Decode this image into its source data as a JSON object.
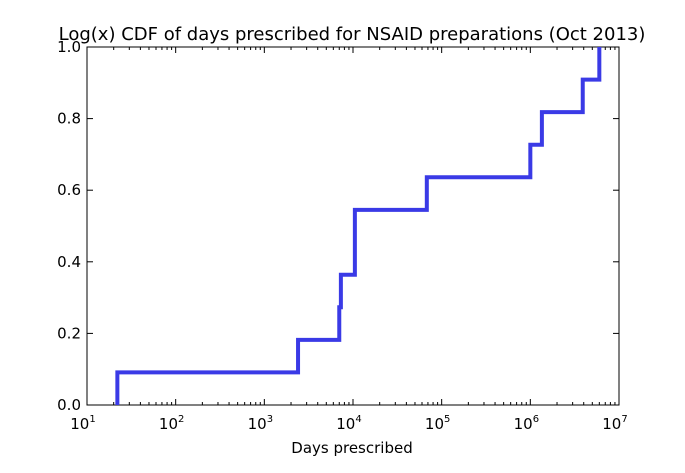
{
  "chart_data": {
    "type": "line",
    "title": "Log(x) CDF of days prescribed for NSAID preparations (Oct 2013)",
    "xlabel": "Days prescribed",
    "ylabel": "",
    "xscale": "log",
    "xlim": [
      10,
      10000000
    ],
    "ylim": [
      0,
      1
    ],
    "x_ticks": [
      {
        "base": "10",
        "exp": "1",
        "value": 10
      },
      {
        "base": "10",
        "exp": "2",
        "value": 100
      },
      {
        "base": "10",
        "exp": "3",
        "value": 1000
      },
      {
        "base": "10",
        "exp": "4",
        "value": 10000
      },
      {
        "base": "10",
        "exp": "5",
        "value": 100000
      },
      {
        "base": "10",
        "exp": "6",
        "value": 1000000
      },
      {
        "base": "10",
        "exp": "7",
        "value": 10000000
      }
    ],
    "y_ticks": [
      {
        "label": "0.0",
        "value": 0.0
      },
      {
        "label": "0.2",
        "value": 0.2
      },
      {
        "label": "0.4",
        "value": 0.4
      },
      {
        "label": "0.6",
        "value": 0.6
      },
      {
        "label": "0.8",
        "value": 0.8
      },
      {
        "label": "1.0",
        "value": 1.0
      }
    ],
    "grid": false,
    "series": [
      {
        "color": "#3a3ae6",
        "step": "post",
        "points": [
          {
            "x": 22,
            "y": 0.0
          },
          {
            "x": 22,
            "y": 0.091
          },
          {
            "x": 2400,
            "y": 0.182
          },
          {
            "x": 7000,
            "y": 0.273
          },
          {
            "x": 7300,
            "y": 0.364
          },
          {
            "x": 10500,
            "y": 0.545
          },
          {
            "x": 68000,
            "y": 0.636
          },
          {
            "x": 1000000,
            "y": 0.727
          },
          {
            "x": 1350000,
            "y": 0.818
          },
          {
            "x": 3900000,
            "y": 0.909
          },
          {
            "x": 6000000,
            "y": 1.0
          }
        ]
      }
    ]
  }
}
